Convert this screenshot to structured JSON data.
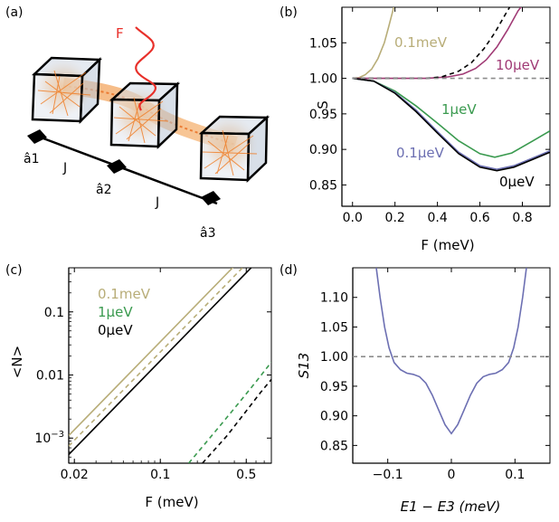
{
  "panel_a": {
    "label": "(a)",
    "drive_label": "F",
    "site_labels": [
      "â1",
      "â2",
      "â3"
    ],
    "hopping_labels": [
      "J",
      "J"
    ]
  },
  "chart_data": [
    {
      "panel": "(b)",
      "type": "line",
      "xlabel": "F (meV)",
      "ylabel": "S",
      "xlim": [
        -0.05,
        0.93
      ],
      "ylim": [
        0.82,
        1.1
      ],
      "xticks": [
        "0.0",
        "0.2",
        "0.4",
        "0.6",
        "0.8"
      ],
      "yticks": [
        "0.85",
        "0.90",
        "0.95",
        "1.00",
        "1.05"
      ],
      "series": [
        {
          "name": "0.1meV",
          "color": "#b8ad78",
          "style": "solid",
          "x": [
            0,
            0.03,
            0.06,
            0.09,
            0.12,
            0.15,
            0.17,
            0.19,
            0.2
          ],
          "y": [
            1.0,
            1.001,
            1.005,
            1.013,
            1.028,
            1.05,
            1.072,
            1.095,
            1.11
          ]
        },
        {
          "name": "10μeV",
          "color": "#a03a75",
          "style": "solid",
          "x": [
            0,
            0.2,
            0.35,
            0.45,
            0.52,
            0.58,
            0.63,
            0.68,
            0.73,
            0.78,
            0.82
          ],
          "y": [
            1.0,
            1.0,
            1.0,
            1.002,
            1.006,
            1.014,
            1.026,
            1.044,
            1.068,
            1.095,
            1.11
          ]
        },
        {
          "name": "",
          "color": "#000000",
          "style": "dashed",
          "x": [
            0,
            0.2,
            0.35,
            0.42,
            0.5,
            0.56,
            0.62,
            0.67,
            0.72,
            0.76
          ],
          "y": [
            1.0,
            1.0,
            1.0,
            1.002,
            1.01,
            1.022,
            1.042,
            1.064,
            1.09,
            1.11
          ]
        },
        {
          "name": "1μeV",
          "color": "#3a9a4f",
          "style": "solid",
          "x": [
            0,
            0.1,
            0.2,
            0.3,
            0.4,
            0.5,
            0.6,
            0.67,
            0.75,
            0.85,
            0.93
          ],
          "y": [
            1.0,
            0.996,
            0.982,
            0.961,
            0.937,
            0.912,
            0.894,
            0.889,
            0.895,
            0.912,
            0.926
          ]
        },
        {
          "name": "0.1μeV",
          "color": "#6c6fb2",
          "style": "solid",
          "x": [
            0,
            0.1,
            0.2,
            0.3,
            0.4,
            0.5,
            0.6,
            0.68,
            0.76,
            0.85,
            0.93
          ],
          "y": [
            1.0,
            0.996,
            0.98,
            0.955,
            0.925,
            0.896,
            0.877,
            0.872,
            0.877,
            0.888,
            0.898
          ]
        },
        {
          "name": "0μeV",
          "color": "#000000",
          "style": "solid",
          "x": [
            0,
            0.1,
            0.2,
            0.3,
            0.4,
            0.5,
            0.6,
            0.68,
            0.76,
            0.85,
            0.93
          ],
          "y": [
            1.0,
            0.996,
            0.979,
            0.953,
            0.923,
            0.894,
            0.875,
            0.87,
            0.875,
            0.886,
            0.896
          ]
        },
        {
          "name": "",
          "color": "#8c8c8c",
          "style": "dashed",
          "x": [
            0,
            0.93
          ],
          "y": [
            1.0,
            1.0
          ]
        }
      ]
    },
    {
      "panel": "(c)",
      "type": "line",
      "xlabel": "F (meV)",
      "ylabel": "<N>",
      "xscale": "log",
      "yscale": "log",
      "xlim": [
        0.018,
        0.8
      ],
      "ylim": [
        0.0004,
        0.5
      ],
      "xticks": [
        "0.02",
        "0.1",
        "0.5"
      ],
      "yticks": [
        "10^-3",
        "0.01",
        "0.1"
      ],
      "legend": [
        "0.1meV",
        "1μeV",
        "0μeV"
      ],
      "series": [
        {
          "name": "0.1meV",
          "color": "#b8ad78",
          "style": "solid",
          "x": [
            0.018,
            0.6
          ],
          "y": [
            0.0011,
            1.2
          ]
        },
        {
          "name": "",
          "color": "#b8ad78",
          "style": "dashed",
          "x": [
            0.018,
            0.6
          ],
          "y": [
            0.00075,
            0.83
          ]
        },
        {
          "name": "0μeV",
          "color": "#000000",
          "style": "solid",
          "x": [
            0.018,
            0.6
          ],
          "y": [
            0.00055,
            0.6
          ]
        },
        {
          "name": "1μeV",
          "color": "#3a9a4f",
          "style": "dashed",
          "x": [
            0.17,
            0.3,
            0.45,
            0.6,
            0.8
          ],
          "y": [
            0.0004,
            0.0015,
            0.0039,
            0.0078,
            0.016
          ]
        },
        {
          "name": "",
          "color": "#000000",
          "style": "dashed",
          "x": [
            0.22,
            0.35,
            0.5,
            0.65,
            0.8
          ],
          "y": [
            0.0004,
            0.0011,
            0.0027,
            0.0052,
            0.0085
          ]
        }
      ]
    },
    {
      "panel": "(d)",
      "type": "line",
      "xlabel": "E1 − E3 (meV)",
      "ylabel": "S13",
      "xlim": [
        -0.155,
        0.155
      ],
      "ylim": [
        0.82,
        1.15
      ],
      "xticks": [
        "−0.1",
        "0",
        "0.1"
      ],
      "yticks": [
        "0.85",
        "0.90",
        "0.95",
        "1.00",
        "1.05",
        "1.10"
      ],
      "series": [
        {
          "name": "",
          "color": "#6c6fb2",
          "style": "solid",
          "x": [
            -0.118,
            -0.112,
            -0.105,
            -0.098,
            -0.09,
            -0.08,
            -0.07,
            -0.06,
            -0.05,
            -0.04,
            -0.03,
            -0.02,
            -0.01,
            0,
            0.01,
            0.02,
            0.03,
            0.04,
            0.05,
            0.06,
            0.07,
            0.08,
            0.09,
            0.098,
            0.105,
            0.112,
            0.118
          ],
          "y": [
            1.15,
            1.1,
            1.05,
            1.015,
            0.99,
            0.978,
            0.972,
            0.97,
            0.966,
            0.955,
            0.935,
            0.91,
            0.885,
            0.87,
            0.885,
            0.91,
            0.935,
            0.955,
            0.966,
            0.97,
            0.972,
            0.978,
            0.99,
            1.015,
            1.05,
            1.1,
            1.15
          ]
        },
        {
          "name": "",
          "color": "#8c8c8c",
          "style": "dashed",
          "x": [
            -0.155,
            0.155
          ],
          "y": [
            1.0,
            1.0
          ]
        }
      ]
    }
  ],
  "labels_b": {
    "panel": "(b)",
    "c1": "0.1meV",
    "c2": "10μeV",
    "c3": "1μeV",
    "c4": "0.1μeV",
    "c5": "0μeV"
  },
  "labels_c": {
    "panel": "(c)"
  },
  "labels_d": {
    "panel": "(d)"
  },
  "colors": {
    "tan": "#b8ad78",
    "magenta": "#a03a75",
    "green": "#3a9a4f",
    "blue": "#6c6fb2",
    "grey": "#8c8c8c",
    "drive": "#e8302a"
  }
}
